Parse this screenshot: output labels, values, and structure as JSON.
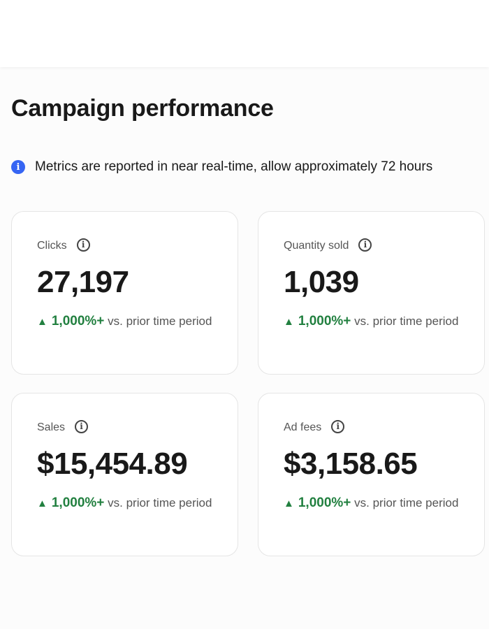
{
  "page": {
    "title": "Campaign performance",
    "notice": "Metrics are reported in near real-time, allow approximately 72 hours",
    "notice_icon": "info-filled-icon"
  },
  "colors": {
    "accent": "#3665f3",
    "positive": "#228040"
  },
  "metrics": [
    {
      "label": "Clicks",
      "value": "27,197",
      "change": "1,000%+",
      "suffix": "vs. prior time period"
    },
    {
      "label": "Quantity sold",
      "value": "1,039",
      "change": "1,000%+",
      "suffix": "vs. prior time period"
    },
    {
      "label": "Sales",
      "value": "$15,454.89",
      "change": "1,000%+",
      "suffix": "vs. prior time period"
    },
    {
      "label": "Ad fees",
      "value": "$3,158.65",
      "change": "1,000%+",
      "suffix": "vs. prior time period"
    }
  ]
}
